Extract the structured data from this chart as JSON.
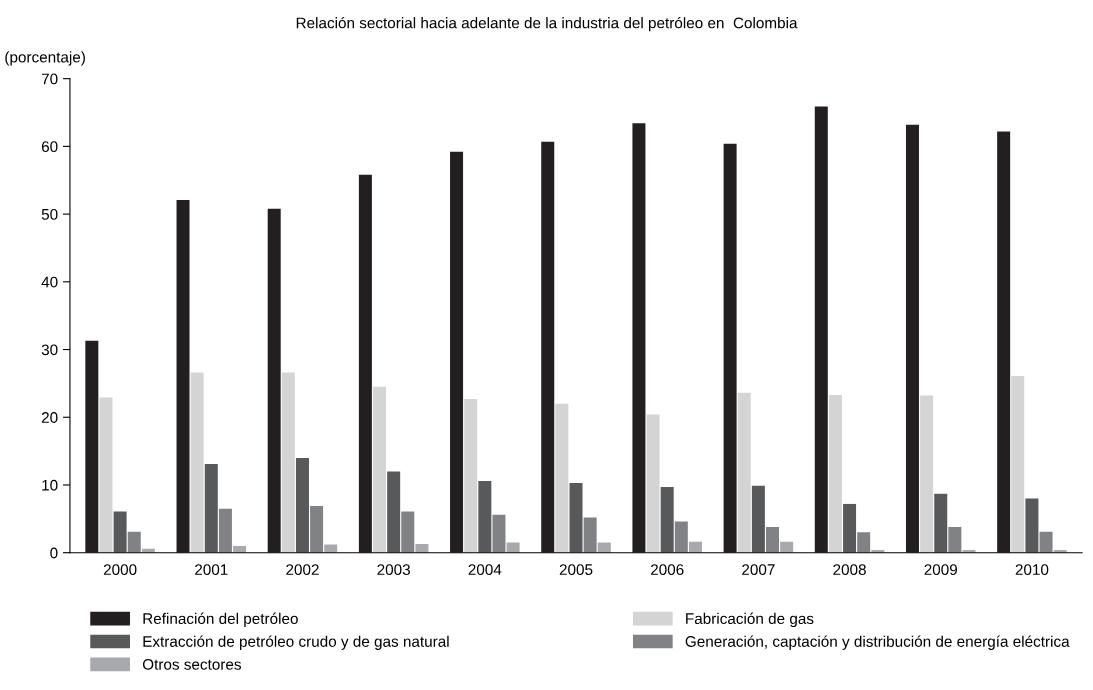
{
  "chart_data": {
    "type": "bar",
    "title": "Relación sectorial hacia adelante de la industria del petróleo en  Colombia",
    "ylabel": "(porcentaje)",
    "categories": [
      "2000",
      "2001",
      "2002",
      "2003",
      "2004",
      "2005",
      "2006",
      "2007",
      "2008",
      "2009",
      "2010"
    ],
    "series": [
      {
        "name": "Refinación del petróleo",
        "color": "#231f20",
        "values": [
          31.3,
          52.1,
          50.8,
          55.8,
          59.2,
          60.7,
          63.4,
          60.4,
          65.9,
          63.2,
          62.2
        ]
      },
      {
        "name": "Fabricación de gas",
        "color": "#d4d4d4",
        "values": [
          22.9,
          26.6,
          26.6,
          24.5,
          22.7,
          22.0,
          20.4,
          23.6,
          23.3,
          23.2,
          26.1
        ]
      },
      {
        "name": "Extracción de petróleo crudo y de gas natural",
        "color": "#58595b",
        "values": [
          6.1,
          13.1,
          14.0,
          12.0,
          10.6,
          10.3,
          9.7,
          9.9,
          7.2,
          8.7,
          8.0
        ]
      },
      {
        "name": "Generación, captación y distribución de energía eléctrica",
        "color": "#808285",
        "values": [
          3.1,
          6.5,
          6.9,
          6.1,
          5.6,
          5.2,
          4.6,
          3.8,
          3.0,
          3.8,
          3.1
        ]
      },
      {
        "name": "Otros sectores",
        "color": "#a7a9ac",
        "values": [
          0.6,
          1.0,
          1.2,
          1.3,
          1.5,
          1.5,
          1.6,
          1.6,
          0.4,
          0.4,
          0.4
        ]
      }
    ],
    "ylim": [
      0,
      70
    ],
    "yticks": [
      0,
      10,
      20,
      30,
      40,
      50,
      60,
      70
    ],
    "grid": false,
    "legend": "bottom"
  }
}
